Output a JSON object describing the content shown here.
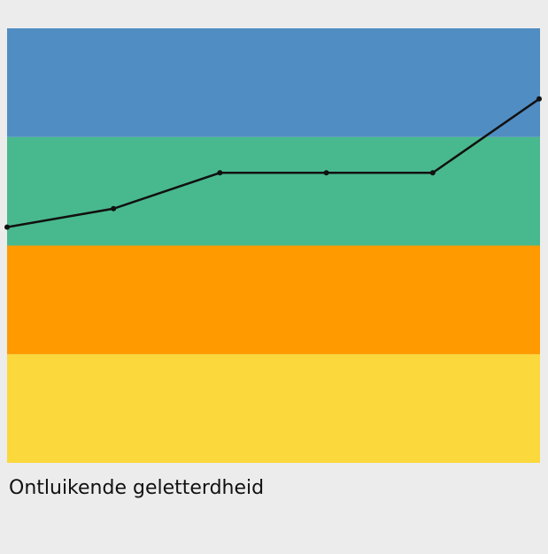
{
  "chart_data": {
    "type": "line",
    "title": "Ontluikende geletterdheid",
    "categories": [
      null,
      null,
      null,
      null,
      null,
      null
    ],
    "values": [
      2.17,
      2.34,
      2.67,
      2.67,
      2.67,
      3.35
    ],
    "color": "#111111",
    "ylim": [
      0,
      4
    ],
    "bands": [
      {
        "color": "#fbd83b",
        "from": 0,
        "to": 1
      },
      {
        "color": "#ff9a00",
        "from": 1,
        "to": 2
      },
      {
        "color": "#48b98e",
        "from": 2,
        "to": 3
      },
      {
        "color": "#508dc2",
        "from": 3,
        "to": 4
      }
    ]
  }
}
